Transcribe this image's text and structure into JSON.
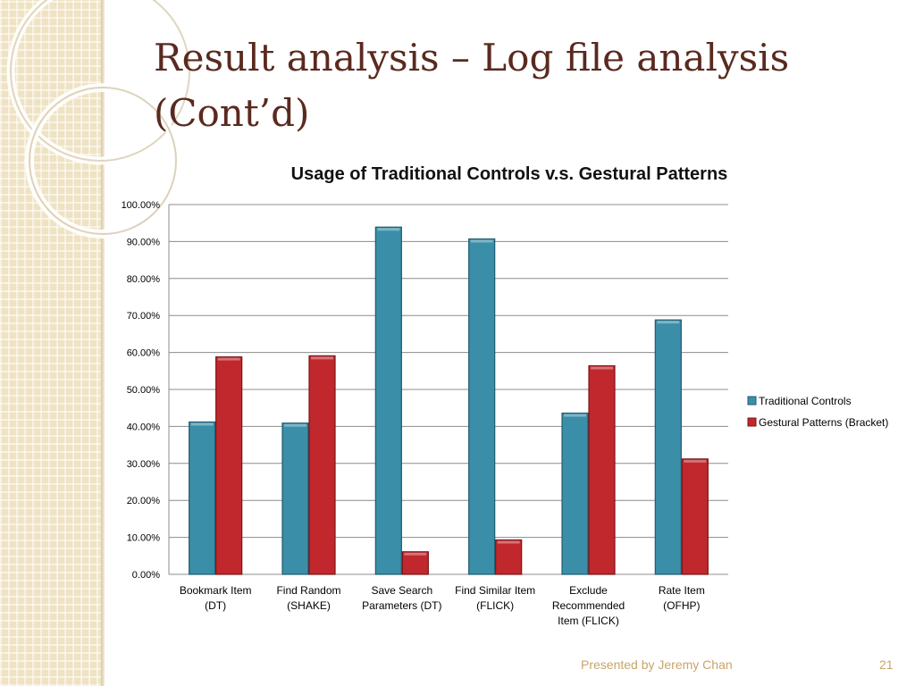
{
  "slide": {
    "title_line1": "Result analysis – Log file analysis",
    "title_line2": "(Cont’d)",
    "footer_text": "Presented by Jeremy Chan",
    "page_number": "21"
  },
  "chart_data": {
    "type": "bar",
    "title": "Usage of Traditional Controls v.s. Gestural Patterns",
    "xlabel": "",
    "ylabel": "",
    "ylim": [
      0,
      100
    ],
    "yticks": [
      "0.00%",
      "10.00%",
      "20.00%",
      "30.00%",
      "40.00%",
      "50.00%",
      "60.00%",
      "70.00%",
      "80.00%",
      "90.00%",
      "100.00%"
    ],
    "grid": true,
    "legend_position": "right",
    "categories": [
      [
        "Bookmark Item",
        "(DT)"
      ],
      [
        "Find Random",
        "(SHAKE)"
      ],
      [
        "Save Search",
        "Parameters (DT)"
      ],
      [
        "Find Similar Item",
        "(FLICK)"
      ],
      [
        "Exclude",
        "Recommended",
        "Item (FLICK)"
      ],
      [
        "Rate Item",
        "(OFHP)"
      ]
    ],
    "series": [
      {
        "name": "Traditional Controls",
        "color": "#3a8ea8",
        "values": [
          41.2,
          40.9,
          93.9,
          90.7,
          43.6,
          68.8
        ]
      },
      {
        "name": "Gestural Patterns (Bracket)",
        "color": "#c0282d",
        "values": [
          58.8,
          59.1,
          6.1,
          9.3,
          56.4,
          31.2
        ]
      }
    ]
  }
}
